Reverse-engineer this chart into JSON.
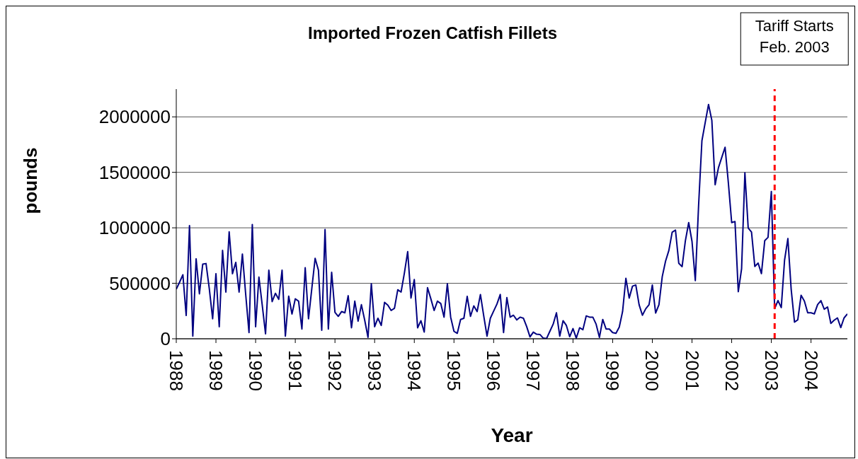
{
  "chart_data": {
    "type": "line",
    "title": "Imported Frozen Catfish Fillets",
    "xlabel": "Year",
    "ylabel": "pounds",
    "x": [
      "1988-01",
      "1988-02",
      "1988-03",
      "1988-04",
      "1988-05",
      "1988-06",
      "1988-07",
      "1988-08",
      "1988-09",
      "1988-10",
      "1988-11",
      "1988-12",
      "1989-01",
      "1989-02",
      "1989-03",
      "1989-04",
      "1989-05",
      "1989-06",
      "1989-07",
      "1989-08",
      "1989-09",
      "1989-10",
      "1989-11",
      "1989-12",
      "1990-01",
      "1990-02",
      "1990-03",
      "1990-04",
      "1990-05",
      "1990-06",
      "1990-07",
      "1990-08",
      "1990-09",
      "1990-10",
      "1990-11",
      "1990-12",
      "1991-01",
      "1991-02",
      "1991-03",
      "1991-04",
      "1991-05",
      "1991-06",
      "1991-07",
      "1991-08",
      "1991-09",
      "1991-10",
      "1991-11",
      "1991-12",
      "1992-01",
      "1992-02",
      "1992-03",
      "1992-04",
      "1992-05",
      "1992-06",
      "1992-07",
      "1992-08",
      "1992-09",
      "1992-10",
      "1992-11",
      "1992-12",
      "1993-01",
      "1993-02",
      "1993-03",
      "1993-04",
      "1993-05",
      "1993-06",
      "1993-07",
      "1993-08",
      "1993-09",
      "1993-10",
      "1993-11",
      "1993-12",
      "1994-01",
      "1994-02",
      "1994-03",
      "1994-04",
      "1994-05",
      "1994-06",
      "1994-07",
      "1994-08",
      "1994-09",
      "1994-10",
      "1994-11",
      "1994-12",
      "1995-01",
      "1995-02",
      "1995-03",
      "1995-04",
      "1995-05",
      "1995-06",
      "1995-07",
      "1995-08",
      "1995-09",
      "1995-10",
      "1995-11",
      "1995-12",
      "1996-01",
      "1996-02",
      "1996-03",
      "1996-04",
      "1996-05",
      "1996-06",
      "1996-07",
      "1996-08",
      "1996-09",
      "1996-10",
      "1996-11",
      "1996-12",
      "1997-01",
      "1997-02",
      "1997-03",
      "1997-04",
      "1997-05",
      "1997-06",
      "1997-07",
      "1997-08",
      "1997-09",
      "1997-10",
      "1997-11",
      "1997-12",
      "1998-01",
      "1998-02",
      "1998-03",
      "1998-04",
      "1998-05",
      "1998-06",
      "1998-07",
      "1998-08",
      "1998-09",
      "1998-10",
      "1998-11",
      "1998-12",
      "1999-01",
      "1999-02",
      "1999-03",
      "1999-04",
      "1999-05",
      "1999-06",
      "1999-07",
      "1999-08",
      "1999-09",
      "1999-10",
      "1999-11",
      "1999-12",
      "2000-01",
      "2000-02",
      "2000-03",
      "2000-04",
      "2000-05",
      "2000-06",
      "2000-07",
      "2000-08",
      "2000-09",
      "2000-10",
      "2000-11",
      "2000-12",
      "2001-01",
      "2001-02",
      "2001-03",
      "2001-04",
      "2001-05",
      "2001-06",
      "2001-07",
      "2001-08",
      "2001-09",
      "2001-10",
      "2001-11",
      "2001-12",
      "2002-01",
      "2002-02",
      "2002-03",
      "2002-04",
      "2002-05",
      "2002-06",
      "2002-07",
      "2002-08",
      "2002-09",
      "2002-10",
      "2002-11",
      "2002-12",
      "2003-01",
      "2003-02",
      "2003-03",
      "2003-04",
      "2003-05",
      "2003-06",
      "2003-07",
      "2003-08",
      "2003-09",
      "2003-10",
      "2003-11",
      "2003-12",
      "2004-01",
      "2004-02",
      "2004-03",
      "2004-04",
      "2004-05",
      "2004-06",
      "2004-07",
      "2004-08",
      "2004-09",
      "2004-10",
      "2004-11",
      "2004-12"
    ],
    "series": [
      {
        "color": "#000080",
        "values": [
          448000,
          510000,
          577000,
          210000,
          1020000,
          24000,
          721000,
          405000,
          672000,
          678000,
          449000,
          180000,
          586000,
          109000,
          796000,
          421000,
          964000,
          586000,
          689000,
          421000,
          764000,
          400000,
          56000,
          1030000,
          109000,
          556000,
          303000,
          45000,
          618000,
          335000,
          410000,
          356000,
          618000,
          24000,
          384000,
          223000,
          360000,
          339000,
          88000,
          640000,
          180000,
          453000,
          725000,
          618000,
          77000,
          985000,
          88000,
          599000,
          238000,
          202000,
          245000,
          234000,
          388000,
          99000,
          339000,
          159000,
          307000,
          167000,
          13000,
          496000,
          109000,
          185000,
          120000,
          328000,
          303000,
          255000,
          275000,
          442000,
          421000,
          592000,
          785000,
          367000,
          534000,
          99000,
          163000,
          60000,
          461000,
          361000,
          255000,
          339000,
          318000,
          195000,
          496000,
          195000,
          67000,
          49000,
          174000,
          185000,
          382000,
          202000,
          296000,
          245000,
          399000,
          206000,
          24000,
          185000,
          249000,
          313000,
          399000,
          56000,
          371000,
          195000,
          212000,
          170000,
          195000,
          185000,
          109000,
          17000,
          60000,
          41000,
          39000,
          6000,
          2000,
          67000,
          131000,
          234000,
          24000,
          163000,
          120000,
          19000,
          92000,
          6000,
          99000,
          82000,
          206000,
          195000,
          195000,
          131000,
          13000,
          174000,
          88000,
          88000,
          56000,
          49000,
          105000,
          245000,
          545000,
          367000,
          474000,
          485000,
          307000,
          212000,
          270000,
          307000,
          485000,
          232000,
          307000,
          560000,
          700000,
          796000,
          960000,
          980000,
          680000,
          650000,
          884000,
          1047000,
          878000,
          525000,
          1205000,
          1785000,
          1950000,
          2112000,
          1969000,
          1388000,
          1542000,
          1634000,
          1726000,
          1405000,
          1047000,
          1057000,
          424000,
          631000,
          1496000,
          998000,
          962000,
          652000,
          682000,
          587000,
          884000,
          914000,
          1327000,
          272000,
          344000,
          281000,
          709000,
          903000,
          445000,
          150000,
          171000,
          392000,
          340000,
          234000,
          234000,
          224000,
          308000,
          344000,
          266000,
          287000,
          139000,
          167000,
          188000,
          101000,
          188000,
          224000
        ]
      }
    ],
    "xlim": [
      "1988-01",
      "2004-12"
    ],
    "xticks": [
      "1988",
      "1989",
      "1990",
      "1991",
      "1992",
      "1993",
      "1994",
      "1995",
      "1996",
      "1997",
      "1998",
      "1999",
      "2000",
      "2001",
      "2002",
      "2003",
      "2004"
    ],
    "ylim": [
      0,
      2250000
    ],
    "yticks": [
      0,
      500000,
      1000000,
      1500000,
      2000000
    ],
    "grid": "y",
    "marker": "none",
    "line_style": "solid",
    "ref_lines": [
      {
        "axis": "x",
        "value": "2003-02",
        "label": "Tariff Starts\nFeb. 2003",
        "color": "#ff0000",
        "line_style": "dashed"
      }
    ]
  }
}
